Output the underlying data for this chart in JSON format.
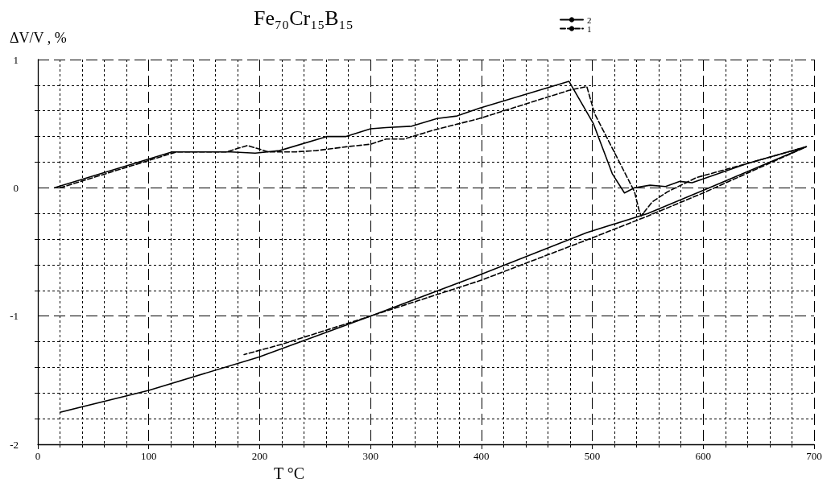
{
  "chart_data": {
    "type": "line",
    "title": "Fe₇₀Cr₁₅B₁₅",
    "xlabel": "T °C",
    "ylabel": "ΔV/V , %",
    "xlim": [
      0,
      700
    ],
    "xticks": [
      0,
      100,
      200,
      300,
      400,
      500,
      600,
      700
    ],
    "ylim": [
      -2,
      1
    ],
    "yticks": [
      -2,
      -1,
      0,
      1
    ],
    "grid": true,
    "legend": "top",
    "marker": "none",
    "series": [
      {
        "name": "2",
        "color": "#000000",
        "line_style": "solid",
        "x": [
          15,
          121,
          174,
          196,
          218,
          261,
          278,
          300,
          314,
          337,
          360,
          378,
          398,
          479,
          501,
          518,
          529,
          538,
          552,
          566,
          579,
          590,
          640,
          693,
          600,
          550,
          495,
          398,
          300,
          199,
          100,
          20
        ],
        "values": [
          0,
          0.28,
          0.28,
          0.27,
          0.29,
          0.4,
          0.4,
          0.46,
          0.47,
          0.48,
          0.54,
          0.56,
          0.62,
          0.83,
          0.5,
          0.11,
          -0.04,
          0,
          0.02,
          0.01,
          0.05,
          0.04,
          0.19,
          0.32,
          -0.02,
          -0.2,
          -0.35,
          -0.68,
          -1.0,
          -1.32,
          -1.58,
          -1.75
        ]
      },
      {
        "name": "1",
        "color": "#000000",
        "line_style": "dashed",
        "x": [
          20,
          125,
          170,
          189,
          208,
          232,
          251,
          278,
          300,
          314,
          330,
          357,
          398,
          479,
          495,
          502,
          538,
          542,
          544,
          554,
          568,
          594,
          640,
          693,
          600,
          550,
          500,
          400,
          300,
          220,
          186
        ],
        "values": [
          0,
          0.28,
          0.28,
          0.33,
          0.28,
          0.28,
          0.29,
          0.32,
          0.34,
          0.38,
          0.38,
          0.45,
          0.54,
          0.76,
          0.79,
          0.58,
          -0.03,
          -0.17,
          -0.22,
          -0.11,
          -0.03,
          0.08,
          0.19,
          0.32,
          -0.04,
          -0.22,
          -0.39,
          -0.72,
          -1.0,
          -1.22,
          -1.3
        ]
      }
    ]
  }
}
